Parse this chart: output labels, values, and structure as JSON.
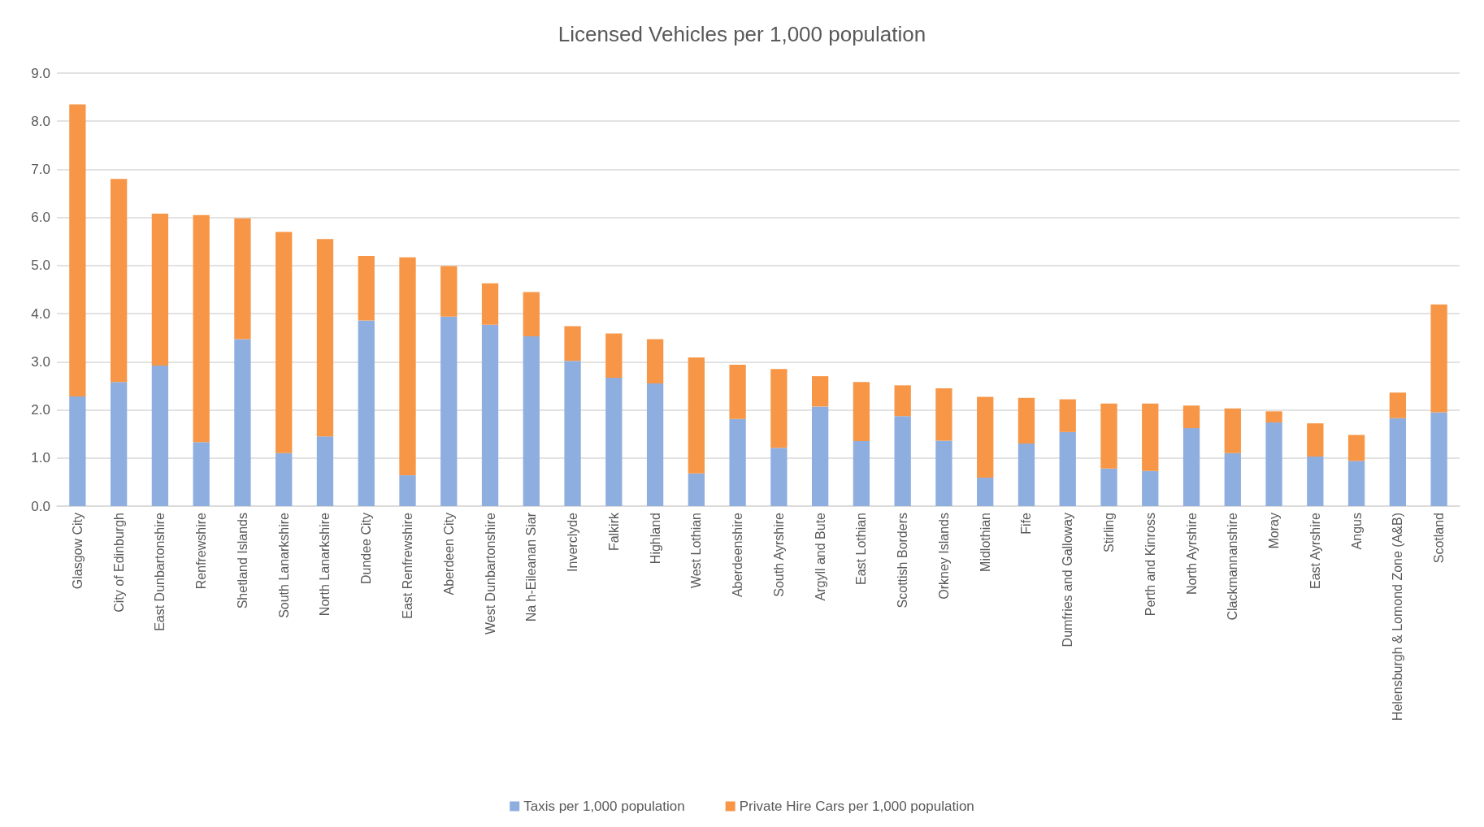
{
  "chart_data": {
    "type": "bar",
    "title": "Licensed Vehicles per 1,000 population",
    "stacked": true,
    "categories": [
      "Glasgow City",
      "City of Edinburgh",
      "East Dunbartonshire",
      "Renfrewshire",
      "Shetland Islands",
      "South Lanarkshire",
      "North Lanarkshire",
      "Dundee City",
      "East Renfrewshire",
      "Aberdeen City",
      "West Dunbartonshire",
      "Na h-Eileanan Siar",
      "Inverclyde",
      "Falkirk",
      "Highland",
      "West Lothian",
      "Aberdeenshire",
      "South Ayrshire",
      "Argyll and Bute",
      "East Lothian",
      "Scottish Borders",
      "Orkney Islands",
      "Midlothian",
      "Fife",
      "Dumfries and Galloway",
      "Stirling",
      "Perth and Kinross",
      "North Ayrshire",
      "Clackmannanshire",
      "Moray",
      "East Ayrshire",
      "Angus",
      "Helensburgh & Lomond Zone (A&B)",
      "Scotland"
    ],
    "series": [
      {
        "name": "Taxis per 1,000 population",
        "color": "#8eaedf",
        "values": [
          2.28,
          2.58,
          2.92,
          1.33,
          3.47,
          1.1,
          1.45,
          3.86,
          0.64,
          3.94,
          3.77,
          3.53,
          3.02,
          2.67,
          2.55,
          0.68,
          1.81,
          1.21,
          2.07,
          1.35,
          1.87,
          1.36,
          0.59,
          1.3,
          1.54,
          0.78,
          0.73,
          1.62,
          1.1,
          1.74,
          1.03,
          0.94,
          1.83,
          1.95
        ]
      },
      {
        "name": "Private Hire Cars per 1,000 population",
        "color": "#f79646",
        "values": [
          6.07,
          4.22,
          3.16,
          4.72,
          2.51,
          4.6,
          4.1,
          1.34,
          4.53,
          1.05,
          0.86,
          0.92,
          0.72,
          0.92,
          0.92,
          2.41,
          1.13,
          1.64,
          0.63,
          1.23,
          0.64,
          1.09,
          1.68,
          0.95,
          0.68,
          1.35,
          1.4,
          0.47,
          0.93,
          0.23,
          0.69,
          0.54,
          0.53,
          2.24
        ]
      }
    ],
    "ylim": [
      0,
      9
    ],
    "yticks": [
      {
        "value": 0,
        "label": "0.0"
      },
      {
        "value": 1,
        "label": "1.0"
      },
      {
        "value": 2,
        "label": "2.0"
      },
      {
        "value": 3,
        "label": "3.0"
      },
      {
        "value": 4,
        "label": "4.0"
      },
      {
        "value": 5,
        "label": "5.0"
      },
      {
        "value": 6,
        "label": "6.0"
      },
      {
        "value": 7,
        "label": "7.0"
      },
      {
        "value": 8,
        "label": "8.0"
      },
      {
        "value": 9,
        "label": "9.0"
      }
    ],
    "grid": "y",
    "legend": "bottom"
  }
}
